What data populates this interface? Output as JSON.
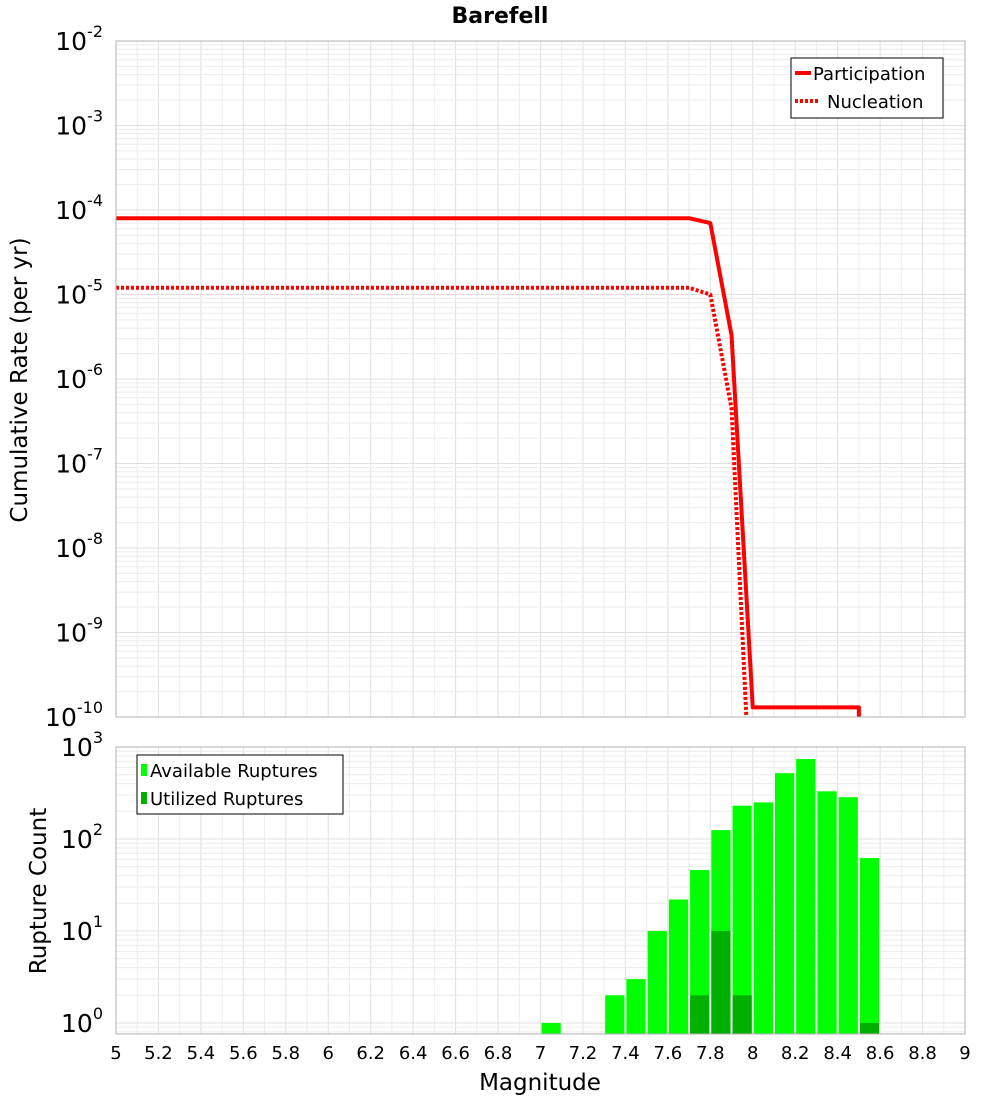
{
  "chart_data": [
    {
      "type": "line",
      "title": "Barefell",
      "xlabel": "",
      "ylabel": "Cumulative Rate (per yr)",
      "xlim": [
        5,
        9
      ],
      "ylim_log10": [
        -10,
        -2
      ],
      "yscale": "log",
      "y_tick_exponents": [
        "-2",
        "-3",
        "-4",
        "-5",
        "-6",
        "-7",
        "-8",
        "-9",
        "-10"
      ],
      "legend_position": "top-right",
      "series": [
        {
          "name": "Participation",
          "style": "solid",
          "color": "#ff0000",
          "points": [
            [
              5.0,
              8e-05
            ],
            [
              7.7,
              8e-05
            ],
            [
              7.8,
              7e-05
            ],
            [
              7.9,
              3.3e-06
            ],
            [
              8.0,
              1.3e-10
            ],
            [
              8.5,
              1.3e-10
            ],
            [
              8.5,
              1e-10
            ]
          ]
        },
        {
          "name": "Nucleation",
          "style": "dotted",
          "color": "#ff0000",
          "points": [
            [
              5.0,
              1.2e-05
            ],
            [
              7.7,
              1.2e-05
            ],
            [
              7.8,
              1e-05
            ],
            [
              7.9,
              4.5e-07
            ],
            [
              7.97,
              1e-10
            ]
          ]
        }
      ]
    },
    {
      "type": "bar",
      "title": "",
      "xlabel": "Magnitude",
      "ylabel": "Rupture Count",
      "xlim": [
        5,
        9
      ],
      "ylim_log10": [
        -0.12,
        3
      ],
      "yscale": "log",
      "y_tick_exponents": [
        "3",
        "2",
        "1",
        "0"
      ],
      "bin_width": 0.1,
      "x_tick_labels": [
        "5",
        "5.2",
        "5.4",
        "5.6",
        "5.8",
        "6",
        "6.2",
        "6.4",
        "6.6",
        "6.8",
        "7",
        "7.2",
        "7.4",
        "7.6",
        "7.8",
        "8",
        "8.2",
        "8.4",
        "8.6",
        "8.8",
        "9"
      ],
      "legend_position": "top-left",
      "series": [
        {
          "name": "Available Ruptures",
          "color": "#00ff00",
          "points": [
            [
              7.05,
              1
            ],
            [
              7.35,
              2
            ],
            [
              7.45,
              3
            ],
            [
              7.55,
              10
            ],
            [
              7.65,
              22
            ],
            [
              7.75,
              46
            ],
            [
              7.85,
              125
            ],
            [
              7.95,
              230
            ],
            [
              8.05,
              250
            ],
            [
              8.15,
              520
            ],
            [
              8.25,
              740
            ],
            [
              8.35,
              330
            ],
            [
              8.45,
              285
            ],
            [
              8.55,
              62
            ]
          ]
        },
        {
          "name": "Utilized Ruptures",
          "color": "#00b000",
          "points": [
            [
              7.75,
              2
            ],
            [
              7.85,
              10
            ],
            [
              7.95,
              2
            ],
            [
              8.55,
              1
            ]
          ]
        }
      ]
    }
  ]
}
